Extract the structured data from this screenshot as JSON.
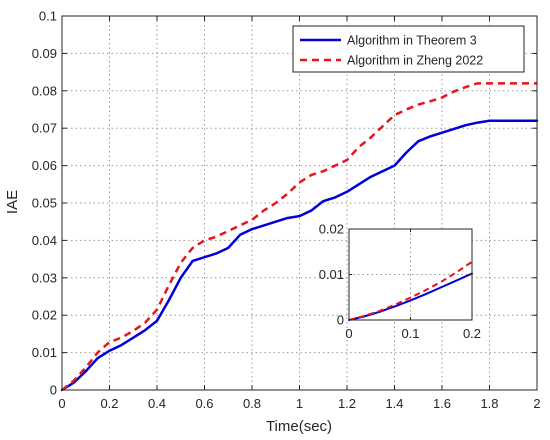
{
  "chart_data": [
    {
      "type": "line",
      "title": "",
      "xlabel": "Time(sec)",
      "ylabel": "IAE",
      "xlim": [
        0,
        2
      ],
      "ylim": [
        0,
        0.1
      ],
      "xticks": [
        0,
        0.2,
        0.4,
        0.6,
        0.8,
        1,
        1.2,
        1.4,
        1.6,
        1.8,
        2
      ],
      "xtick_labels": [
        "0",
        "0.2",
        "0.4",
        "0.6",
        "0.8",
        "1",
        "1.2",
        "1.4",
        "1.6",
        "1.8",
        "2"
      ],
      "yticks": [
        0,
        0.01,
        0.02,
        0.03,
        0.04,
        0.05,
        0.06,
        0.07,
        0.08,
        0.09,
        0.1
      ],
      "ytick_labels": [
        "0",
        "0.01",
        "0.02",
        "0.03",
        "0.04",
        "0.05",
        "0.06",
        "0.07",
        "0.08",
        "0.09",
        "0.1"
      ],
      "grid": true,
      "legend": "top-right",
      "series": [
        {
          "name": "Algorithm in Theorem 3",
          "color": "#0000d8",
          "style": "solid",
          "x": [
            0,
            0.05,
            0.1,
            0.15,
            0.2,
            0.25,
            0.3,
            0.35,
            0.4,
            0.45,
            0.5,
            0.55,
            0.6,
            0.65,
            0.7,
            0.75,
            0.8,
            0.85,
            0.9,
            0.95,
            1.0,
            1.05,
            1.1,
            1.15,
            1.2,
            1.25,
            1.3,
            1.35,
            1.4,
            1.45,
            1.5,
            1.55,
            1.6,
            1.65,
            1.7,
            1.75,
            1.8,
            1.85,
            1.9,
            1.95,
            2.0
          ],
          "y": [
            0,
            0.002,
            0.005,
            0.0085,
            0.0105,
            0.012,
            0.014,
            0.016,
            0.0185,
            0.024,
            0.03,
            0.0345,
            0.0355,
            0.0365,
            0.038,
            0.0415,
            0.043,
            0.044,
            0.045,
            0.046,
            0.0465,
            0.048,
            0.0505,
            0.0515,
            0.053,
            0.055,
            0.057,
            0.0585,
            0.06,
            0.0635,
            0.0665,
            0.0678,
            0.0688,
            0.0698,
            0.0708,
            0.0715,
            0.072,
            0.072,
            0.072,
            0.072,
            0.072
          ]
        },
        {
          "name": "Algorithm in Zheng 2022",
          "color": "#e8141c",
          "style": "dashed",
          "x": [
            0,
            0.05,
            0.1,
            0.15,
            0.2,
            0.25,
            0.3,
            0.35,
            0.4,
            0.45,
            0.5,
            0.55,
            0.6,
            0.65,
            0.7,
            0.75,
            0.8,
            0.85,
            0.9,
            0.95,
            1.0,
            1.05,
            1.1,
            1.15,
            1.2,
            1.25,
            1.3,
            1.35,
            1.4,
            1.45,
            1.5,
            1.55,
            1.6,
            1.65,
            1.7,
            1.75,
            1.8,
            1.85,
            1.9,
            1.95,
            2.0
          ],
          "y": [
            0,
            0.0025,
            0.006,
            0.01,
            0.0128,
            0.014,
            0.0158,
            0.018,
            0.0215,
            0.028,
            0.034,
            0.038,
            0.04,
            0.041,
            0.0425,
            0.044,
            0.0455,
            0.048,
            0.05,
            0.0525,
            0.0555,
            0.0575,
            0.0585,
            0.06,
            0.0615,
            0.065,
            0.0675,
            0.0705,
            0.0735,
            0.075,
            0.0763,
            0.0772,
            0.0782,
            0.0798,
            0.081,
            0.082,
            0.082,
            0.082,
            0.082,
            0.082,
            0.082
          ]
        }
      ]
    },
    {
      "type": "line",
      "title": "",
      "role": "inset",
      "xlabel": "",
      "ylabel": "",
      "xlim": [
        0,
        0.2
      ],
      "ylim": [
        0,
        0.02
      ],
      "xticks": [
        0,
        0.1,
        0.2
      ],
      "xtick_labels": [
        "0",
        "0.1",
        "0.2"
      ],
      "yticks": [
        0,
        0.01,
        0.02
      ],
      "ytick_labels": [
        "0",
        "0.01",
        "0.02"
      ],
      "grid": true,
      "series": [
        {
          "name": "Algorithm in Theorem 3",
          "color": "#0000d8",
          "style": "solid",
          "x": [
            0,
            0.025,
            0.05,
            0.075,
            0.1,
            0.125,
            0.15,
            0.175,
            0.2
          ],
          "y": [
            0,
            0.0008,
            0.0018,
            0.003,
            0.0043,
            0.0057,
            0.0072,
            0.0087,
            0.0102
          ]
        },
        {
          "name": "Algorithm in Zheng 2022",
          "color": "#e8141c",
          "style": "dashed",
          "x": [
            0,
            0.025,
            0.05,
            0.075,
            0.1,
            0.125,
            0.15,
            0.175,
            0.2
          ],
          "y": [
            0,
            0.0009,
            0.002,
            0.0034,
            0.0049,
            0.0066,
            0.0084,
            0.0105,
            0.0128
          ]
        }
      ]
    }
  ]
}
